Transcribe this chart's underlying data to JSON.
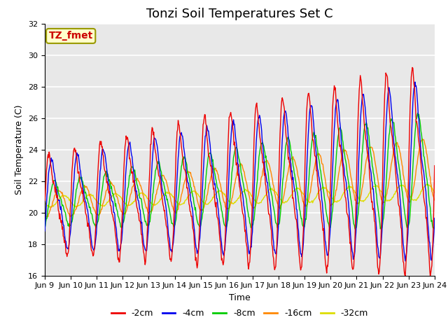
{
  "title": "Tonzi Soil Temperatures Set C",
  "xlabel": "Time",
  "ylabel": "Soil Temperature (C)",
  "ylim": [
    16,
    32
  ],
  "x_tick_labels": [
    "Jun 9",
    "Jun 10",
    "Jun 11",
    "Jun 12",
    "Jun 13",
    "Jun 14",
    "Jun 15",
    "Jun 16",
    "Jun 17",
    "Jun 18",
    "Jun 19",
    "Jun 20",
    "Jun 21",
    "Jun 22",
    "Jun 23",
    "Jun 24"
  ],
  "annotation_text": "TZ_fmet",
  "annotation_bbox_facecolor": "#ffffcc",
  "annotation_bbox_edgecolor": "#999900",
  "annotation_text_color": "#cc0000",
  "series_colors": [
    "#ee0000",
    "#0000ee",
    "#00cc00",
    "#ff8800",
    "#dddd00"
  ],
  "series_labels": [
    "-2cm",
    "-4cm",
    "-8cm",
    "-16cm",
    "-32cm"
  ],
  "background_color": "#e8e8e8",
  "grid_color": "#ffffff",
  "title_fontsize": 13,
  "label_fontsize": 9,
  "tick_fontsize": 8,
  "legend_fontsize": 9,
  "n_points": 720,
  "yticks": [
    16,
    18,
    20,
    22,
    24,
    26,
    28,
    30,
    32
  ]
}
